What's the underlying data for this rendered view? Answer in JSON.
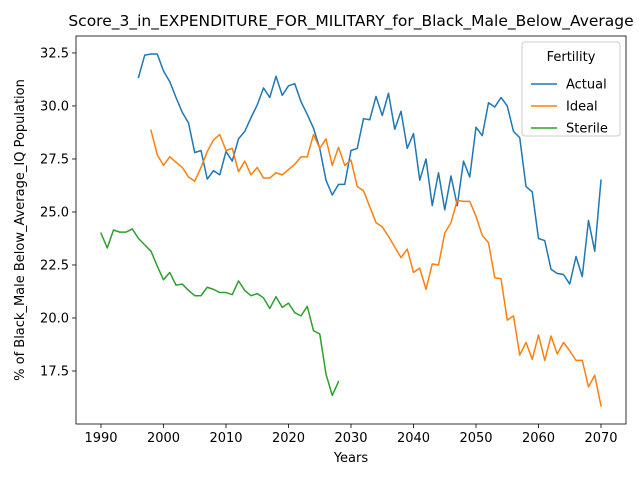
{
  "chart_data": {
    "type": "line",
    "title": "Score_3_in_EXPENDITURE_FOR_MILITARY_for_Black_Male_Below_Average",
    "xlabel": "Years",
    "ylabel": "% of Black_Male Below_Average_IQ Population",
    "xlim": [
      1986,
      2074
    ],
    "ylim": [
      15.0,
      33.3
    ],
    "xticks": [
      1990,
      2000,
      2010,
      2020,
      2030,
      2040,
      2050,
      2060,
      2070
    ],
    "yticks": [
      17.5,
      20.0,
      22.5,
      25.0,
      27.5,
      30.0,
      32.5
    ],
    "ytick_labels": [
      "17.5",
      "20.0",
      "22.5",
      "25.0",
      "27.5",
      "30.0",
      "32.5"
    ],
    "grid": false,
    "legend": {
      "title": "Fertility",
      "placement": "top-right"
    },
    "series": [
      {
        "name": "Actual",
        "color": "#1f77b4",
        "x": [
          1996,
          1997,
          1998,
          1999,
          2000,
          2001,
          2002,
          2003,
          2004,
          2005,
          2006,
          2007,
          2008,
          2009,
          2010,
          2011,
          2012,
          2013,
          2014,
          2015,
          2016,
          2017,
          2018,
          2019,
          2020,
          2021,
          2022,
          2023,
          2024,
          2025,
          2026,
          2027,
          2028,
          2029,
          2030,
          2031,
          2032,
          2033,
          2034,
          2035,
          2036,
          2037,
          2038,
          2039,
          2040,
          2041,
          2042,
          2043,
          2044,
          2045,
          2046,
          2047,
          2048,
          2049,
          2050,
          2051,
          2052,
          2053,
          2054,
          2055,
          2056,
          2057,
          2058,
          2059,
          2060,
          2061,
          2062,
          2063,
          2064,
          2065,
          2066,
          2067,
          2068,
          2069,
          2070
        ],
        "values": [
          31.35,
          32.4,
          32.45,
          32.45,
          31.65,
          31.15,
          30.4,
          29.7,
          29.2,
          27.8,
          27.9,
          26.55,
          26.95,
          26.75,
          27.85,
          27.4,
          28.45,
          28.8,
          29.45,
          30.05,
          30.85,
          30.4,
          31.4,
          30.5,
          30.95,
          31.05,
          30.2,
          29.6,
          28.95,
          28.0,
          26.5,
          25.8,
          26.3,
          26.3,
          27.9,
          28.0,
          29.4,
          29.35,
          30.45,
          29.55,
          30.6,
          28.9,
          29.75,
          28.0,
          28.7,
          26.5,
          27.5,
          25.3,
          26.85,
          25.1,
          26.7,
          25.3,
          27.4,
          26.65,
          29.0,
          28.6,
          30.15,
          29.95,
          30.4,
          30.0,
          28.8,
          28.5,
          26.2,
          25.95,
          23.75,
          23.65,
          22.3,
          22.1,
          22.05,
          21.6,
          22.9,
          21.95,
          24.6,
          23.15,
          26.5
        ]
      },
      {
        "name": "Ideal",
        "color": "#ff7f0e",
        "x": [
          1998,
          1999,
          2000,
          2001,
          2002,
          2003,
          2004,
          2005,
          2006,
          2007,
          2008,
          2009,
          2010,
          2011,
          2012,
          2013,
          2014,
          2015,
          2016,
          2017,
          2018,
          2019,
          2020,
          2021,
          2022,
          2023,
          2024,
          2025,
          2026,
          2027,
          2028,
          2029,
          2030,
          2031,
          2032,
          2033,
          2034,
          2035,
          2036,
          2037,
          2038,
          2039,
          2040,
          2041,
          2042,
          2043,
          2044,
          2045,
          2046,
          2047,
          2048,
          2049,
          2050,
          2051,
          2052,
          2053,
          2054,
          2055,
          2056,
          2057,
          2058,
          2059,
          2060,
          2061,
          2062,
          2063,
          2064,
          2065,
          2066,
          2067,
          2068,
          2069,
          2070
        ],
        "values": [
          28.85,
          27.7,
          27.2,
          27.6,
          27.35,
          27.1,
          26.65,
          26.45,
          27.1,
          27.85,
          28.4,
          28.65,
          27.9,
          28.0,
          26.9,
          27.4,
          26.75,
          27.1,
          26.6,
          26.6,
          26.85,
          26.75,
          27.0,
          27.25,
          27.6,
          27.6,
          28.65,
          28.0,
          28.45,
          27.2,
          28.05,
          27.2,
          27.45,
          26.2,
          26.0,
          25.25,
          24.5,
          24.3,
          23.85,
          23.35,
          22.85,
          23.25,
          22.15,
          22.35,
          21.35,
          22.55,
          22.5,
          24.0,
          24.5,
          25.55,
          25.5,
          25.5,
          24.8,
          23.9,
          23.55,
          21.9,
          21.85,
          19.9,
          20.1,
          18.25,
          18.85,
          18.05,
          19.2,
          18.0,
          19.15,
          18.3,
          18.85,
          18.45,
          18.0,
          18.0,
          16.75,
          17.3,
          15.85
        ]
      },
      {
        "name": "Sterile",
        "color": "#2ca02c",
        "x": [
          1990,
          1991,
          1992,
          1993,
          1994,
          1995,
          1996,
          1997,
          1998,
          1999,
          2000,
          2001,
          2002,
          2003,
          2004,
          2005,
          2006,
          2007,
          2008,
          2009,
          2010,
          2011,
          2012,
          2013,
          2014,
          2015,
          2016,
          2017,
          2018,
          2019,
          2020,
          2021,
          2022,
          2023,
          2024,
          2025,
          2026,
          2027,
          2028
        ],
        "values": [
          24.0,
          23.3,
          24.15,
          24.05,
          24.05,
          24.2,
          23.75,
          23.45,
          23.15,
          22.45,
          21.8,
          22.15,
          21.55,
          21.6,
          21.3,
          21.05,
          21.05,
          21.45,
          21.35,
          21.2,
          21.2,
          21.1,
          21.75,
          21.3,
          21.05,
          21.15,
          20.95,
          20.45,
          21.0,
          20.5,
          20.7,
          20.25,
          20.1,
          20.55,
          19.4,
          19.25,
          17.35,
          16.35,
          17.0
        ]
      }
    ]
  }
}
